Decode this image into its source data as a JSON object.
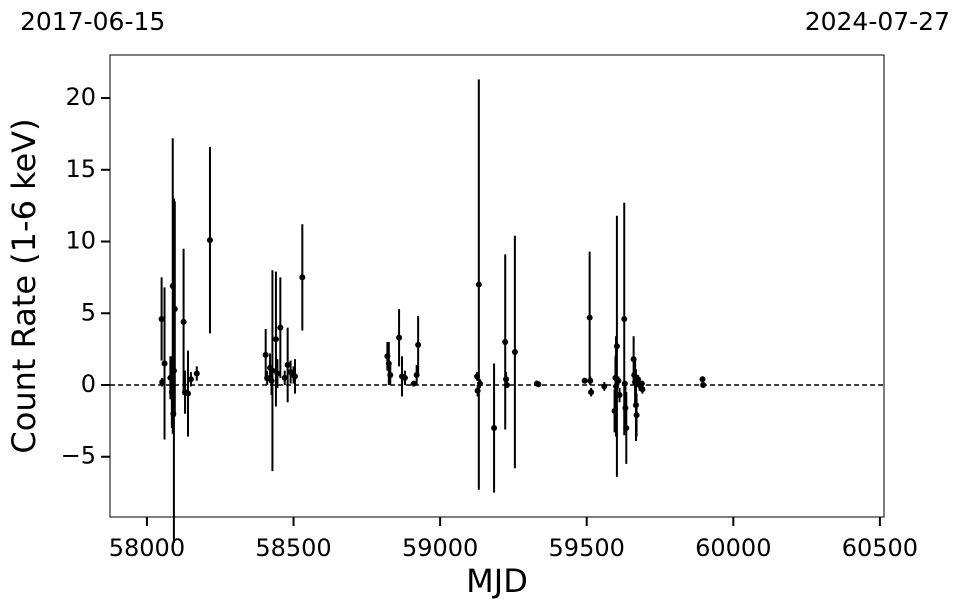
{
  "chart_data": {
    "type": "errorbar",
    "x_label": "MJD",
    "y_label": "Count Rate (1-6 keV)",
    "annotations": [
      "2017-06-15",
      "2024-07-27"
    ],
    "xlim": [
      57874,
      60514
    ],
    "ylim": [
      -9.2,
      23
    ],
    "xticks": [
      58000,
      58500,
      59000,
      59500,
      60000,
      60500
    ],
    "yticks": [
      {
        "value": -5,
        "label": "−5"
      },
      0,
      5,
      10,
      15,
      20
    ],
    "reference_line": 0,
    "color": "#000000",
    "series": [
      {
        "color": "#000000",
        "x": [
          58050,
          58052,
          58060,
          58080,
          58085,
          58088,
          58092,
          58095,
          58090,
          58125,
          58130,
          58140,
          58150,
          58170,
          58215,
          58405,
          58410,
          58420,
          58425,
          58428,
          58440,
          58445,
          58455,
          58470,
          58480,
          58490,
          58500,
          58505,
          58530,
          58820,
          58825,
          58830,
          58860,
          58870,
          58880,
          58910,
          58920,
          58925,
          59126,
          59128,
          59132,
          59136,
          59184,
          59222,
          59225,
          59228,
          59255,
          59330,
          59335,
          59493,
          59510,
          59512,
          59515,
          59560,
          59595,
          59598,
          59600,
          59603,
          59608,
          59612,
          59628,
          59630,
          59632,
          59635,
          59660,
          59662,
          59665,
          59668,
          59670,
          59675,
          59680,
          59690,
          59688,
          59895,
          59897
        ],
        "values": [
          4.6,
          0.2,
          1.5,
          0.5,
          -0.5,
          6.9,
          1.0,
          5.3,
          -2.0,
          4.4,
          -0.5,
          -0.6,
          0.4,
          0.8,
          10.1,
          2.1,
          0.5,
          1.2,
          0.3,
          1.0,
          3.2,
          0.8,
          4.0,
          0.5,
          1.4,
          0.9,
          0.7,
          0.6,
          7.5,
          2.0,
          1.5,
          0.7,
          3.3,
          0.6,
          0.5,
          0.1,
          0.7,
          2.8,
          0.6,
          -0.4,
          7.0,
          0.1,
          -3.0,
          3.0,
          0.4,
          0.0,
          2.3,
          0.1,
          0.05,
          0.3,
          4.7,
          0.3,
          -0.5,
          -0.1,
          -1.8,
          0.5,
          -0.1,
          2.7,
          0.3,
          -0.7,
          4.6,
          0.1,
          -1.6,
          -3.0,
          1.8,
          0.7,
          0.2,
          -1.4,
          -2.1,
          0.4,
          0.0,
          -0.3,
          0.1,
          0.4,
          0.0
        ],
        "errors": [
          2.9,
          0.3,
          5.3,
          1.5,
          2.5,
          10.3,
          12.0,
          7.5,
          1.0,
          5.1,
          1.5,
          3.0,
          0.5,
          0.5,
          6.5,
          1.8,
          0.5,
          1.0,
          1.0,
          7.0,
          4.7,
          1.0,
          3.5,
          0.5,
          2.6,
          0.8,
          0.6,
          1.2,
          3.7,
          1.0,
          1.5,
          0.7,
          2.0,
          1.4,
          0.5,
          0.2,
          0.7,
          2.0,
          0.3,
          0.4,
          14.3,
          0.3,
          4.5,
          6.1,
          0.5,
          0.2,
          8.1,
          0.2,
          0.1,
          0.2,
          4.6,
          0.3,
          0.3,
          0.3,
          1.5,
          1.5,
          3.5,
          9.1,
          0.3,
          0.5,
          8.1,
          0.2,
          1.5,
          2.5,
          1.6,
          0.5,
          1.5,
          2.5,
          1.5,
          0.3,
          0.4,
          0.3,
          0.2,
          0.2,
          0.2
        ]
      }
    ]
  }
}
